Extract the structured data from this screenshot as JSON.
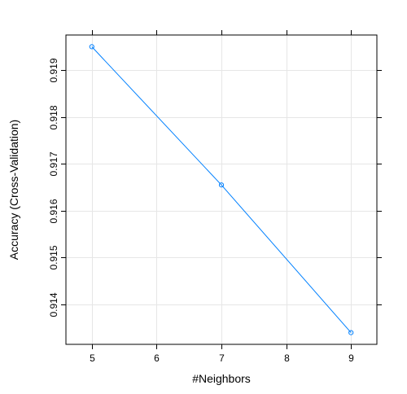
{
  "chart_data": {
    "type": "line",
    "title": "",
    "xlabel": "#Neighbors",
    "ylabel": "Accuracy (Cross-Validation)",
    "x": [
      5,
      7,
      9
    ],
    "series": [
      {
        "values": [
          0.9195,
          0.91655,
          0.9134
        ]
      }
    ],
    "xlim": [
      4.6,
      9.4
    ],
    "ylim": [
      0.91315,
      0.91975
    ],
    "xticks": [
      5,
      6,
      7,
      8,
      9
    ],
    "xtick_labels": [
      "5",
      "6",
      "7",
      "8",
      "9"
    ],
    "yticks": [
      0.914,
      0.915,
      0.916,
      0.917,
      0.918,
      0.919
    ],
    "ytick_labels": [
      "0.914",
      "0.915",
      "0.916",
      "0.917",
      "0.918",
      "0.919"
    ],
    "grid": true,
    "marker": "circle-open",
    "colors": {
      "line": "#0080ff",
      "grid": "#e6e6e6",
      "frame": "#000000"
    }
  }
}
